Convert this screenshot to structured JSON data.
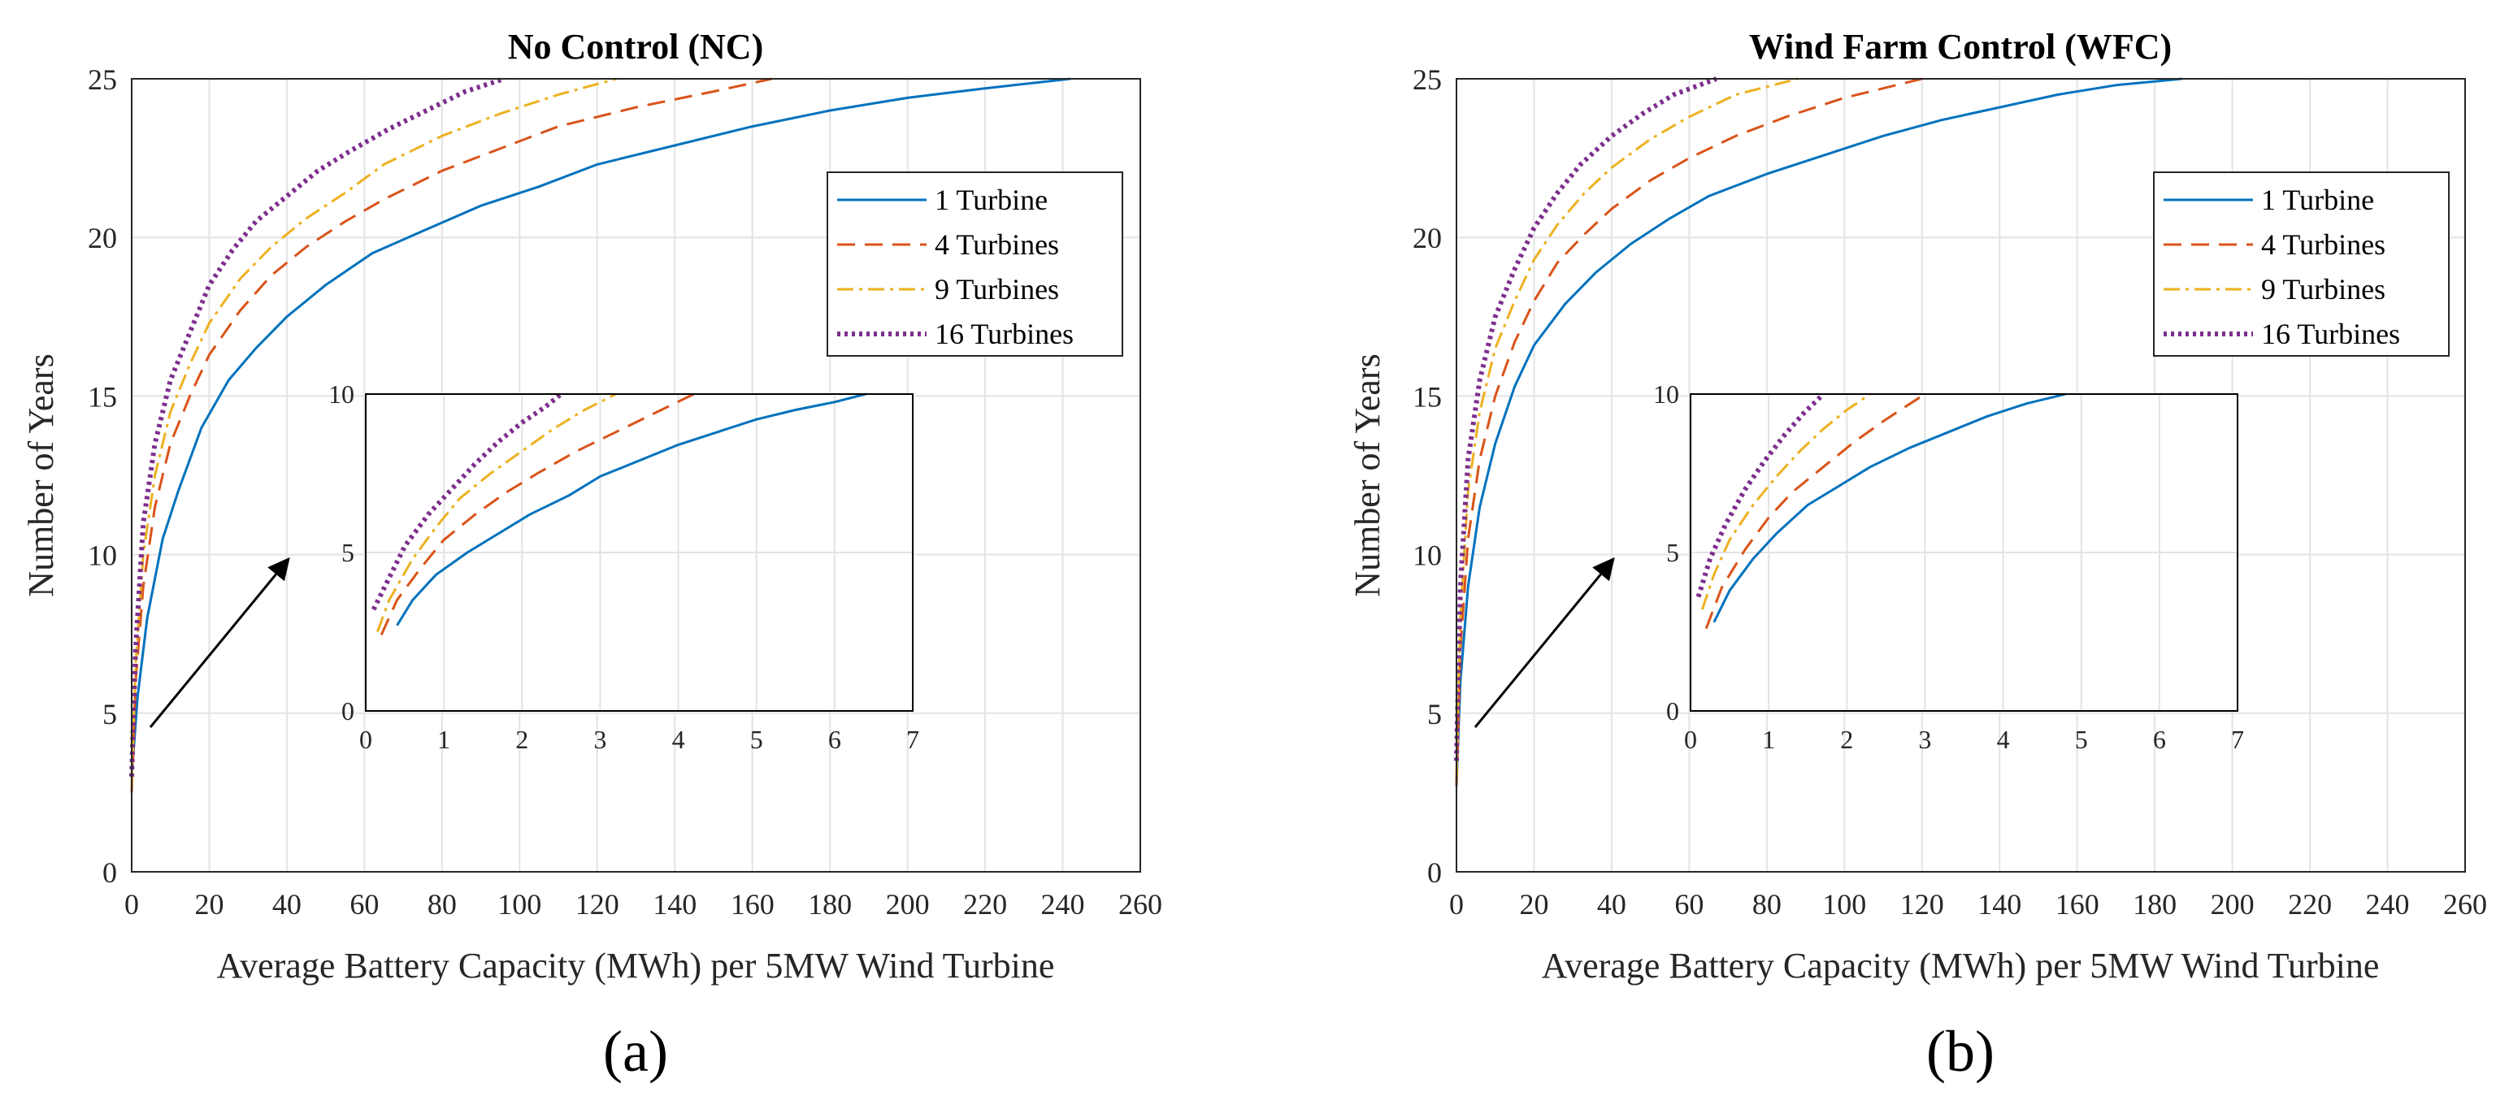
{
  "chart_data": [
    {
      "type": "line",
      "title": "No Control (NC)",
      "panel_label": "(a)",
      "xlabel": "Average Battery Capacity (MWh) per 5MW Wind Turbine",
      "ylabel": "Number of Years",
      "xlim": [
        0,
        260
      ],
      "ylim": [
        0,
        25
      ],
      "xticks": [
        0,
        20,
        40,
        60,
        80,
        100,
        120,
        140,
        160,
        180,
        200,
        220,
        240,
        260
      ],
      "yticks": [
        0,
        5,
        10,
        15,
        20,
        25
      ],
      "grid": true,
      "legend_position": "top-right",
      "colors": [
        "#0072BD",
        "#D95319",
        "#EDB120",
        "#7E2F8E"
      ],
      "series": [
        {
          "name": "1 Turbine",
          "style": "solid",
          "x": [
            0,
            1.5,
            4,
            8,
            12,
            18,
            25,
            32,
            40,
            50,
            62,
            75,
            90,
            105,
            120,
            140,
            160,
            180,
            200,
            220,
            242
          ],
          "y": [
            3,
            5.5,
            8,
            10.5,
            12,
            14,
            15.5,
            16.5,
            17.5,
            18.5,
            19.5,
            20.2,
            21,
            21.6,
            22.3,
            22.9,
            23.5,
            24.0,
            24.4,
            24.7,
            25
          ]
        },
        {
          "name": "4 Turbines",
          "style": "dashed",
          "x": [
            0,
            1,
            3,
            6,
            10,
            15,
            20,
            28,
            36,
            45,
            55,
            65,
            80,
            95,
            110,
            130,
            150,
            165
          ],
          "y": [
            2.5,
            6,
            9,
            11.5,
            13.5,
            15,
            16.3,
            17.7,
            18.8,
            19.7,
            20.5,
            21.2,
            22.1,
            22.8,
            23.5,
            24.1,
            24.6,
            25
          ]
        },
        {
          "name": "9 Turbines",
          "style": "dashdot",
          "x": [
            0,
            1,
            3,
            6,
            10,
            15,
            20,
            28,
            36,
            45,
            55,
            65,
            80,
            95,
            110,
            125
          ],
          "y": [
            2.7,
            6.5,
            10,
            12.5,
            14.5,
            16,
            17.3,
            18.7,
            19.7,
            20.6,
            21.4,
            22.3,
            23.2,
            23.9,
            24.5,
            25
          ]
        },
        {
          "name": "16 Turbines",
          "style": "dotted",
          "x": [
            0,
            1,
            3,
            6,
            10,
            15,
            20,
            26,
            32,
            40,
            48,
            56,
            66,
            76,
            86,
            96
          ],
          "y": [
            3,
            7,
            11,
            13.5,
            15.5,
            17,
            18.5,
            19.6,
            20.5,
            21.3,
            22.1,
            22.7,
            23.4,
            24.0,
            24.6,
            25
          ]
        }
      ],
      "inset": {
        "xlim": [
          0,
          7
        ],
        "ylim": [
          0,
          10
        ],
        "xticks": [
          0,
          1,
          2,
          3,
          4,
          5,
          6,
          7
        ],
        "yticks": [
          0,
          5,
          10
        ],
        "series": [
          {
            "name": "1 Turbine",
            "x": [
              0.4,
              0.6,
              0.9,
              1.3,
              1.7,
              2.1,
              2.6,
              3.0,
              3.5,
              4.0,
              4.5,
              5.0,
              5.5,
              6.0,
              6.4
            ],
            "y": [
              2.7,
              3.5,
              4.3,
              5.0,
              5.6,
              6.2,
              6.8,
              7.4,
              7.9,
              8.4,
              8.8,
              9.2,
              9.5,
              9.75,
              10
            ]
          },
          {
            "name": "4 Turbines",
            "x": [
              0.2,
              0.4,
              0.7,
              1.0,
              1.4,
              1.8,
              2.2,
              2.7,
              3.2,
              3.7,
              4.2
            ],
            "y": [
              2.4,
              3.5,
              4.5,
              5.4,
              6.2,
              6.9,
              7.5,
              8.2,
              8.8,
              9.4,
              10
            ]
          },
          {
            "name": "9 Turbines",
            "x": [
              0.15,
              0.3,
              0.6,
              0.9,
              1.2,
              1.6,
              2.0,
              2.4,
              2.8,
              3.2
            ],
            "y": [
              2.5,
              3.5,
              4.8,
              5.8,
              6.7,
              7.5,
              8.2,
              8.9,
              9.5,
              10
            ]
          },
          {
            "name": "16 Turbines",
            "x": [
              0.1,
              0.3,
              0.5,
              0.8,
              1.1,
              1.4,
              1.7,
              2.0,
              2.3,
              2.5
            ],
            "y": [
              3.2,
              4.2,
              5.2,
              6.2,
              7.0,
              7.8,
              8.5,
              9.1,
              9.6,
              10
            ]
          }
        ]
      }
    },
    {
      "type": "line",
      "title": "Wind Farm Control (WFC)",
      "panel_label": "(b)",
      "xlabel": "Average Battery Capacity (MWh) per 5MW Wind Turbine",
      "ylabel": "Number of Years",
      "xlim": [
        0,
        260
      ],
      "ylim": [
        0,
        25
      ],
      "xticks": [
        0,
        20,
        40,
        60,
        80,
        100,
        120,
        140,
        160,
        180,
        200,
        220,
        240,
        260
      ],
      "yticks": [
        0,
        5,
        10,
        15,
        20,
        25
      ],
      "grid": true,
      "legend_position": "top-right",
      "colors": [
        "#0072BD",
        "#D95319",
        "#EDB120",
        "#7E2F8E"
      ],
      "series": [
        {
          "name": "1 Turbine",
          "style": "solid",
          "x": [
            0,
            1,
            3,
            6,
            10,
            15,
            20,
            28,
            36,
            45,
            55,
            65,
            80,
            95,
            110,
            125,
            140,
            155,
            170,
            187
          ],
          "y": [
            2.8,
            6,
            9,
            11.5,
            13.5,
            15.3,
            16.6,
            17.9,
            18.9,
            19.8,
            20.6,
            21.3,
            22.0,
            22.6,
            23.2,
            23.7,
            24.1,
            24.5,
            24.8,
            25
          ]
        },
        {
          "name": "4 Turbines",
          "style": "dashed",
          "x": [
            0,
            1,
            3,
            6,
            10,
            15,
            20,
            26,
            33,
            40,
            50,
            60,
            72,
            85,
            100,
            120
          ],
          "y": [
            2.7,
            7,
            10.5,
            13,
            15,
            16.7,
            18,
            19.2,
            20.1,
            20.9,
            21.8,
            22.5,
            23.2,
            23.8,
            24.4,
            25
          ]
        },
        {
          "name": "9 Turbines",
          "style": "dashdot",
          "x": [
            0,
            1,
            3,
            6,
            10,
            15,
            20,
            26,
            33,
            40,
            50,
            60,
            72,
            88
          ],
          "y": [
            3,
            8,
            12,
            14.5,
            16.5,
            18,
            19.3,
            20.4,
            21.4,
            22.2,
            23.1,
            23.8,
            24.5,
            25
          ]
        },
        {
          "name": "16 Turbines",
          "style": "dotted",
          "x": [
            0,
            1,
            3,
            6,
            10,
            15,
            20,
            26,
            32,
            40,
            48,
            56,
            67
          ],
          "y": [
            3.5,
            9,
            13,
            15.5,
            17.5,
            19,
            20.3,
            21.4,
            22.3,
            23.2,
            23.9,
            24.5,
            25
          ]
        }
      ],
      "inset": {
        "xlim": [
          0,
          7
        ],
        "ylim": [
          0,
          10
        ],
        "xticks": [
          0,
          1,
          2,
          3,
          4,
          5,
          6,
          7
        ],
        "yticks": [
          0,
          5,
          10
        ],
        "series": [
          {
            "name": "1 Turbine",
            "x": [
              0.3,
              0.5,
              0.8,
              1.1,
              1.5,
              1.9,
              2.3,
              2.8,
              3.3,
              3.8,
              4.3,
              4.8
            ],
            "y": [
              2.8,
              3.8,
              4.8,
              5.6,
              6.5,
              7.1,
              7.7,
              8.3,
              8.8,
              9.3,
              9.7,
              10
            ]
          },
          {
            "name": "4 Turbines",
            "x": [
              0.2,
              0.4,
              0.7,
              1.0,
              1.3,
              1.7,
              2.1,
              2.5,
              3.0
            ],
            "y": [
              2.6,
              3.9,
              5.1,
              6.1,
              6.9,
              7.7,
              8.5,
              9.2,
              10
            ]
          },
          {
            "name": "9 Turbines",
            "x": [
              0.15,
              0.3,
              0.5,
              0.8,
              1.1,
              1.4,
              1.7,
              2.0,
              2.3
            ],
            "y": [
              3.2,
              4.3,
              5.4,
              6.5,
              7.4,
              8.2,
              8.9,
              9.5,
              10
            ]
          },
          {
            "name": "16 Turbines",
            "x": [
              0.1,
              0.25,
              0.45,
              0.7,
              0.95,
              1.2,
              1.45,
              1.7
            ],
            "y": [
              3.6,
              4.8,
              5.9,
              7.0,
              7.9,
              8.7,
              9.4,
              10
            ]
          }
        ]
      }
    }
  ]
}
